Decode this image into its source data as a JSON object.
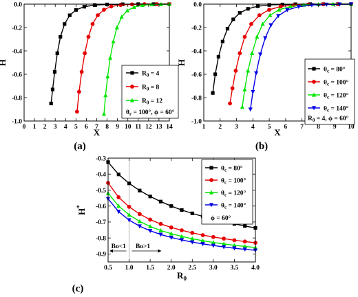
{
  "chart_data": [
    {
      "panel": "(a)",
      "type": "line",
      "xlabel": "X",
      "ylabel": "H",
      "xlim": [
        0,
        14
      ],
      "ylim": [
        -1.0,
        0.0
      ],
      "xticks": [
        "0",
        "1",
        "2",
        "3",
        "4",
        "5",
        "6",
        "7",
        "8",
        "9",
        "10",
        "11",
        "12",
        "13",
        "14"
      ],
      "yticks": [
        "0.0",
        "-0.2",
        "-0.4",
        "-0.6",
        "-0.8",
        "-1.0"
      ],
      "legend_position": "bottom-right",
      "legend_note": "θ_r = 100°, ϕ = 60°",
      "series": [
        {
          "name": "R0 = 4",
          "label_main": "R",
          "label_sub": "0",
          "label_rest": " = 4",
          "color": "#000000",
          "marker": "square",
          "x": [
            2.6,
            2.75,
            2.95,
            3.2,
            3.5,
            3.9,
            4.4,
            5.0,
            5.8,
            6.8,
            8.0,
            9.5,
            11.0,
            12.5,
            14.0
          ],
          "y": [
            -0.85,
            -0.73,
            -0.58,
            -0.42,
            -0.28,
            -0.17,
            -0.095,
            -0.05,
            -0.022,
            -0.008,
            -0.003,
            -0.001,
            0,
            0,
            0
          ]
        },
        {
          "name": "R0 = 8",
          "label_main": "R",
          "label_sub": "0",
          "label_rest": " = 8",
          "color": "#e60000",
          "marker": "circle",
          "x": [
            5.1,
            5.3,
            5.55,
            5.85,
            6.2,
            6.6,
            7.1,
            7.7,
            8.4,
            9.3,
            10.4,
            11.6,
            12.8,
            14.0
          ],
          "y": [
            -0.92,
            -0.75,
            -0.58,
            -0.42,
            -0.28,
            -0.17,
            -0.095,
            -0.048,
            -0.02,
            -0.007,
            -0.002,
            0,
            0,
            0
          ]
        },
        {
          "name": "R0 = 12",
          "label_main": "R",
          "label_sub": "0",
          "label_rest": " = 12",
          "color": "#00e600",
          "marker": "triangle-up",
          "x": [
            7.7,
            7.85,
            8.05,
            8.3,
            8.6,
            8.95,
            9.4,
            9.95,
            10.6,
            11.4,
            12.3,
            13.2,
            14.0
          ],
          "y": [
            -0.94,
            -0.78,
            -0.62,
            -0.46,
            -0.32,
            -0.2,
            -0.11,
            -0.055,
            -0.025,
            -0.009,
            -0.003,
            -0.001,
            0
          ]
        }
      ]
    },
    {
      "panel": "(b)",
      "type": "line",
      "xlabel": "X",
      "ylabel": "H",
      "xlim": [
        1,
        10
      ],
      "ylim": [
        -1.0,
        0.0
      ],
      "xticks": [
        "1",
        "2",
        "3",
        "4",
        "5",
        "6",
        "7",
        "8",
        "9",
        "10"
      ],
      "yticks": [
        "0.0",
        "-0.2",
        "-0.4",
        "-0.6",
        "-0.8",
        "-1.0"
      ],
      "legend_position": "bottom-right",
      "legend_note": "R0 = 4, ϕ = 60°",
      "series": [
        {
          "name": "θc = 80°",
          "label_main": "θ",
          "label_sub": "c",
          "label_rest": " = 80°",
          "color": "#000000",
          "marker": "square",
          "x": [
            1.55,
            1.7,
            1.9,
            2.15,
            2.45,
            2.8,
            3.2,
            3.7,
            4.3,
            5.0,
            5.8,
            6.6,
            7.5,
            8.3,
            9.2,
            10.0
          ],
          "y": [
            -0.76,
            -0.6,
            -0.45,
            -0.32,
            -0.21,
            -0.13,
            -0.075,
            -0.04,
            -0.018,
            -0.007,
            -0.003,
            -0.001,
            0,
            0,
            0,
            0
          ]
        },
        {
          "name": "θc = 100°",
          "label_main": "θ",
          "label_sub": "c",
          "label_rest": " = 100°",
          "color": "#e60000",
          "marker": "circle",
          "x": [
            2.6,
            2.75,
            2.95,
            3.2,
            3.5,
            3.9,
            4.4,
            5.0,
            5.7,
            6.5,
            7.4,
            8.3,
            9.2,
            10.0
          ],
          "y": [
            -0.85,
            -0.72,
            -0.57,
            -0.42,
            -0.28,
            -0.17,
            -0.095,
            -0.048,
            -0.02,
            -0.008,
            -0.003,
            -0.001,
            0,
            0
          ]
        },
        {
          "name": "θc = 120°",
          "label_main": "θ",
          "label_sub": "c",
          "label_rest": " = 120°",
          "color": "#00e600",
          "marker": "triangle-up",
          "x": [
            3.35,
            3.5,
            3.7,
            3.95,
            4.25,
            4.6,
            5.05,
            5.6,
            6.3,
            7.1,
            8.0,
            8.9,
            10.0
          ],
          "y": [
            -0.88,
            -0.73,
            -0.57,
            -0.42,
            -0.28,
            -0.17,
            -0.095,
            -0.048,
            -0.02,
            -0.007,
            -0.002,
            0,
            0
          ]
        },
        {
          "name": "θc = 140°",
          "label_main": "θ",
          "label_sub": "c",
          "label_rest": " = 140°",
          "color": "#0000e6",
          "marker": "triangle-down",
          "x": [
            3.85,
            4.0,
            4.2,
            4.45,
            4.75,
            5.1,
            5.55,
            6.1,
            6.8,
            7.6,
            8.5,
            9.3,
            10.0
          ],
          "y": [
            -0.9,
            -0.75,
            -0.59,
            -0.43,
            -0.29,
            -0.18,
            -0.1,
            -0.05,
            -0.022,
            -0.008,
            -0.003,
            -0.001,
            0
          ]
        }
      ]
    },
    {
      "panel": "(c)",
      "type": "line",
      "xlabel_main": "R",
      "xlabel_sub": "0",
      "ylabel_main": "H",
      "ylabel_sup": "*",
      "xlim": [
        0.5,
        4.0
      ],
      "ylim": [
        -0.95,
        -0.3
      ],
      "xticks": [
        "0.5",
        "1.0",
        "1.5",
        "2.0",
        "2.5",
        "3.0",
        "3.5",
        "4.0"
      ],
      "yticks": [
        "-0.3",
        "-0.4",
        "-0.5",
        "-0.6",
        "-0.7",
        "-0.8",
        "-0.9"
      ],
      "legend_position": "top-right",
      "legend_note": "ϕ = 60°",
      "annotation_left": "Bo<1",
      "annotation_right": "Bo>1",
      "annotation_x": 1.0,
      "series": [
        {
          "name": "θc = 80°",
          "label_main": "θ",
          "label_sub": "c",
          "label_rest": " = 80°",
          "color": "#000000",
          "marker": "square",
          "x": [
            0.5,
            0.75,
            1.0,
            1.25,
            1.5,
            1.75,
            2.0,
            2.25,
            2.5,
            2.75,
            3.0,
            3.25,
            3.5,
            3.75,
            4.0
          ],
          "y": [
            -0.325,
            -0.402,
            -0.458,
            -0.503,
            -0.54,
            -0.572,
            -0.6,
            -0.625,
            -0.646,
            -0.665,
            -0.682,
            -0.698,
            -0.712,
            -0.725,
            -0.737
          ]
        },
        {
          "name": "θc = 100°",
          "label_main": "θ",
          "label_sub": "c",
          "label_rest": " = 100°",
          "color": "#e60000",
          "marker": "circle",
          "x": [
            0.5,
            0.75,
            1.0,
            1.25,
            1.5,
            1.75,
            2.0,
            2.25,
            2.5,
            2.75,
            3.0,
            3.25,
            3.5,
            3.75,
            4.0
          ],
          "y": [
            -0.455,
            -0.545,
            -0.605,
            -0.65,
            -0.685,
            -0.712,
            -0.734,
            -0.752,
            -0.768,
            -0.782,
            -0.794,
            -0.804,
            -0.814,
            -0.822,
            -0.83
          ]
        },
        {
          "name": "θc = 120°",
          "label_main": "θ",
          "label_sub": "c",
          "label_rest": " = 120°",
          "color": "#00e600",
          "marker": "triangle-up",
          "x": [
            0.5,
            0.75,
            1.0,
            1.25,
            1.5,
            1.75,
            2.0,
            2.25,
            2.5,
            2.75,
            3.0,
            3.25,
            3.5,
            3.75,
            4.0
          ],
          "y": [
            -0.52,
            -0.6,
            -0.655,
            -0.696,
            -0.728,
            -0.753,
            -0.773,
            -0.79,
            -0.805,
            -0.817,
            -0.828,
            -0.837,
            -0.846,
            -0.853,
            -0.86
          ]
        },
        {
          "name": "θc = 140°",
          "label_main": "θ",
          "label_sub": "c",
          "label_rest": " = 140°",
          "color": "#0000e6",
          "marker": "triangle-down",
          "x": [
            0.5,
            0.75,
            1.0,
            1.25,
            1.5,
            1.75,
            2.0,
            2.25,
            2.5,
            2.75,
            3.0,
            3.25,
            3.5,
            3.75,
            4.0
          ],
          "y": [
            -0.555,
            -0.635,
            -0.688,
            -0.726,
            -0.755,
            -0.778,
            -0.797,
            -0.812,
            -0.826,
            -0.837,
            -0.847,
            -0.856,
            -0.864,
            -0.871,
            -0.877
          ]
        }
      ]
    }
  ],
  "panels": {
    "a": {
      "label": "(a)",
      "note_main": "θ",
      "note_sub": "r",
      "note_rest": " = 100°, ϕ = 60°"
    },
    "b": {
      "label": "(b)",
      "note_main": "R",
      "note_sub": "0",
      "note_rest": " = 4, ϕ = 60°"
    },
    "c": {
      "label": "(c)",
      "note": "ϕ = 60°"
    }
  }
}
